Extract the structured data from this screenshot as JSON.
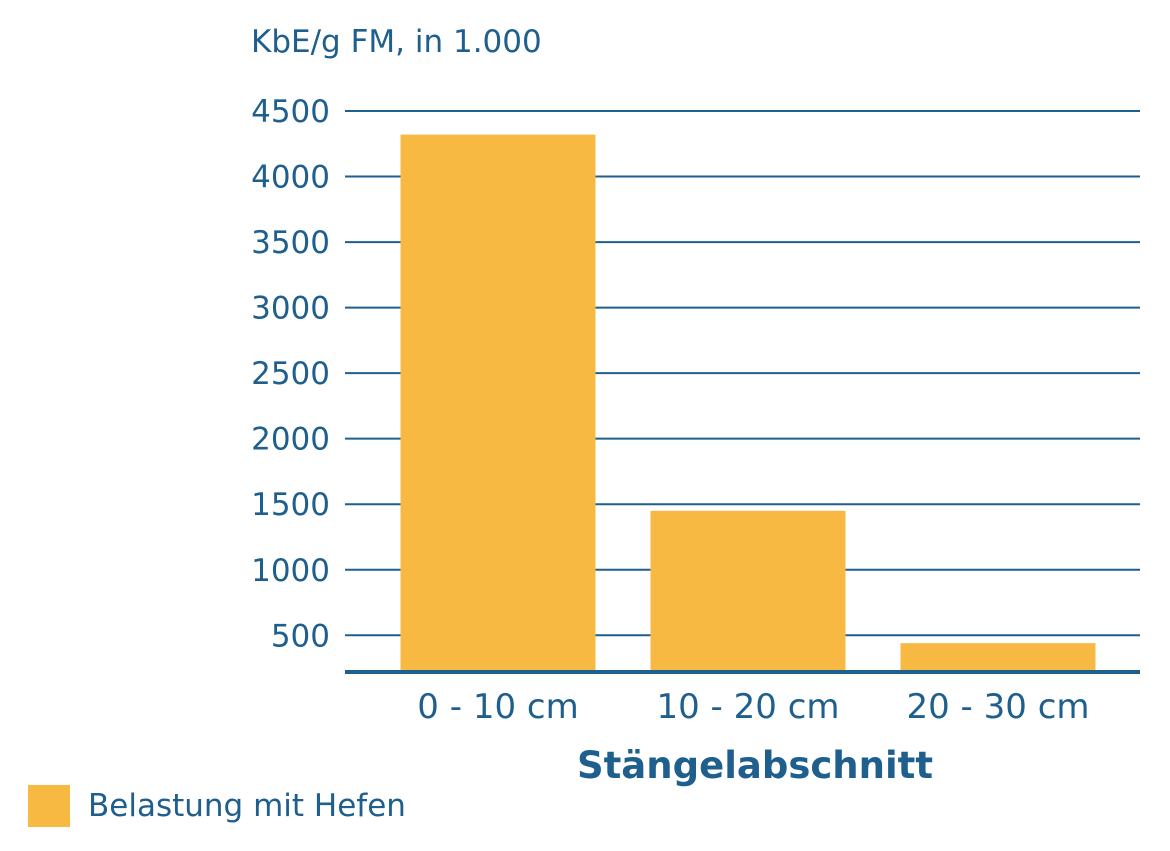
{
  "colors": {
    "axis_text": "#1f5f8e",
    "grid": "#1f5f8e",
    "bar": "#f8b942"
  },
  "chart_data": {
    "type": "bar",
    "categories": [
      "0 - 10 cm",
      "10 - 20 cm",
      "20 - 30 cm"
    ],
    "series": [
      {
        "name": "Belastung mit Hefen",
        "values": [
          4320,
          1450,
          440
        ]
      }
    ],
    "title": "",
    "xlabel": "Stängelabschnitt",
    "ylabel": "KbE/g FM, in 1.000",
    "ylim": [
      220,
      4500
    ],
    "yticks": [
      500,
      1000,
      1500,
      2000,
      2500,
      3000,
      3500,
      4000,
      4500
    ],
    "grid": true,
    "legend": "bottom-left"
  },
  "legend": {
    "label": "Belastung mit Hefen"
  }
}
